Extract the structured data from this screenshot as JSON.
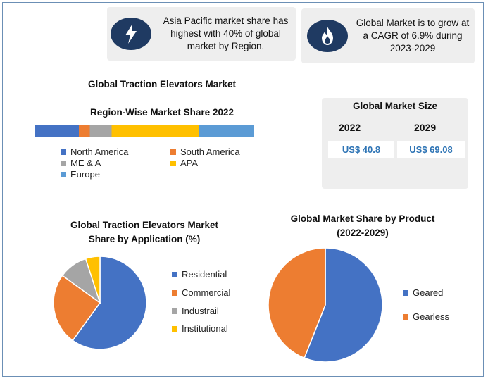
{
  "info_cards": [
    {
      "icon": "lightning-bolt-icon",
      "text_lines": [
        "Asia Pacific market share has",
        "highest with 40% of global",
        "market by Region."
      ]
    },
    {
      "icon": "flame-icon",
      "text_lines": [
        "Global Market is to grow at",
        "a CAGR of 6.9% during",
        "2023-2029"
      ]
    }
  ],
  "colors": {
    "navy": "#1f3a62",
    "blue": "#4472c4",
    "orange": "#ed7d31",
    "gray": "#a5a5a5",
    "yellow": "#ffc000",
    "light_blue": "#5b9bd5",
    "card_bg": "#eeeeee",
    "value_text": "#2e74b5"
  },
  "market_size": {
    "title": "Global Market Size",
    "years": [
      "2022",
      "2029"
    ],
    "values": [
      "US$ 40.8",
      "US$ 69.08"
    ]
  },
  "chart_data": [
    {
      "type": "bar",
      "orientation": "horizontal-stacked",
      "title": "Global Traction Elevators Market",
      "subtitle": "Region-Wise Market Share 2022",
      "series": [
        {
          "name": "North America",
          "value": 20,
          "color": "#4472c4"
        },
        {
          "name": "South America",
          "value": 5,
          "color": "#ed7d31"
        },
        {
          "name": "ME & A",
          "value": 10,
          "color": "#a5a5a5"
        },
        {
          "name": "APA",
          "value": 40,
          "color": "#ffc000"
        },
        {
          "name": "Europe",
          "value": 25,
          "color": "#5b9bd5"
        }
      ],
      "legend_placement": "bottom"
    },
    {
      "type": "pie",
      "title": "Global Traction Elevators Market",
      "subtitle": "Share by Application (%)",
      "slices": [
        {
          "name": "Residential",
          "value": 60,
          "color": "#4472c4"
        },
        {
          "name": "Commercial",
          "value": 25,
          "color": "#ed7d31"
        },
        {
          "name": "Industrail",
          "value": 10,
          "color": "#a5a5a5"
        },
        {
          "name": "Institutional",
          "value": 5,
          "color": "#ffc000"
        }
      ],
      "legend_placement": "right"
    },
    {
      "type": "pie",
      "title": "Global Market Share by Product",
      "subtitle": "(2022-2029)",
      "slices": [
        {
          "name": "Geared",
          "value": 56,
          "color": "#4472c4"
        },
        {
          "name": "Gearless",
          "value": 44,
          "color": "#ed7d31"
        }
      ],
      "legend_placement": "right"
    }
  ]
}
